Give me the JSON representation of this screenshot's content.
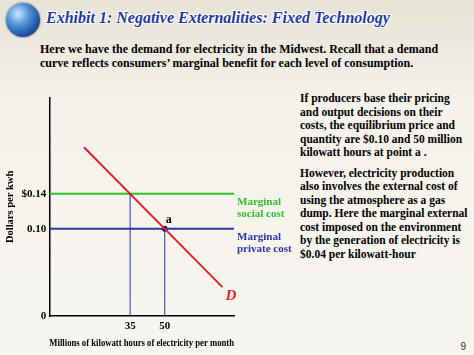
{
  "slide": {
    "title": "Exhibit 1: Negative Externalities: Fixed Technology",
    "intro": "Here we have the demand for electricity in the Midwest. Recall that a demand curve reflects consumers’ marginal benefit for each level of consumption.",
    "paragraphs": [
      "If producers base their pricing and output decisions on their costs, the equilibrium price and quantity are $0.10 and 50 million kilowatt hours at point a .",
      "However, electricity production also involves the external cost of using the atmosphere as a gas dump. Here the marginal external cost imposed on the environment by the generation of electricity is $0.04 per kilowatt-hour"
    ],
    "page_number": 9
  },
  "chart_data": {
    "type": "line",
    "x_label": "Millions of kilowatt hours of electricity per month",
    "y_label": "Dollars per kwh",
    "xlim": [
      0,
      80
    ],
    "xticks": [
      35,
      50
    ],
    "ylim": [
      0,
      0.25
    ],
    "yticks": [
      0,
      {
        "value": 0.1,
        "label": "0.10"
      },
      {
        "value": 0.14,
        "label": "$0.14"
      }
    ],
    "grid": false,
    "series": [
      {
        "name": "D",
        "color": "#e3202a",
        "x": [
          15,
          75
        ],
        "values": [
          0.1933,
          0.0333
        ]
      },
      {
        "name": "Marginal social cost",
        "color": "#2fbf2f",
        "x": [
          0,
          80
        ],
        "values": [
          0.14,
          0.14
        ]
      },
      {
        "name": "Marginal private cost",
        "color": "#2b35a6",
        "x": [
          0,
          80
        ],
        "values": [
          0.1,
          0.1
        ]
      }
    ],
    "points": [
      {
        "label": "a",
        "x": 50,
        "y": 0.1
      }
    ],
    "drop_lines": [
      {
        "x": 35,
        "y": 0.14
      },
      {
        "x": 50,
        "y": 0.1
      }
    ]
  }
}
